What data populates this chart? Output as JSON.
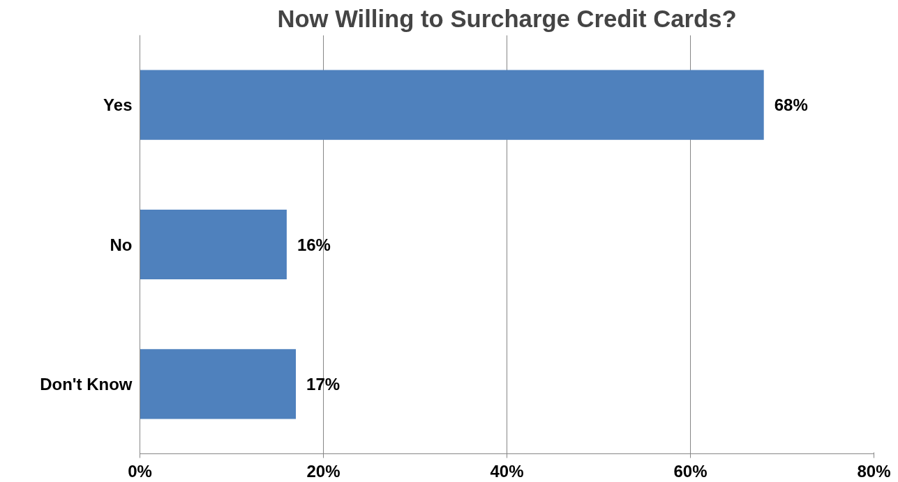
{
  "chart_data": {
    "type": "bar",
    "orientation": "horizontal",
    "title": "Now Willing to Surcharge Credit Cards?",
    "categories": [
      "Yes",
      "No",
      "Don't Know"
    ],
    "values": [
      68,
      16,
      17
    ],
    "value_labels": [
      "68%",
      "16%",
      "17%"
    ],
    "color": "#4f81bd",
    "xlim": [
      0,
      80
    ],
    "xticks": [
      {
        "value": 0,
        "label": "0%"
      },
      {
        "value": 20,
        "label": "20%"
      },
      {
        "value": 40,
        "label": "40%"
      },
      {
        "value": 60,
        "label": "60%"
      },
      {
        "value": 80,
        "label": "80%"
      }
    ],
    "grid": "x"
  }
}
